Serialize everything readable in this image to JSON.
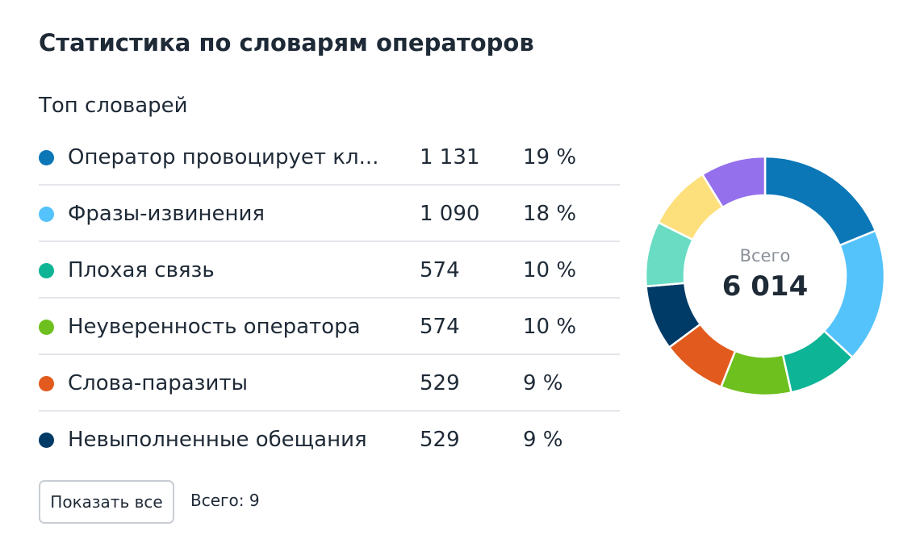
{
  "title": "Статистика по словарям операторов",
  "section_title": "Топ словарей",
  "button_label": "Показать все",
  "total_label": "Всего: 9",
  "chart_data": {
    "type": "pie",
    "variant": "donut",
    "center_label": "Всего",
    "center_value": "6 014",
    "total": 6014,
    "legend": "left",
    "slices": [
      {
        "name": "Оператор провоцирует кл...",
        "value": 1131,
        "value_text": "1 131",
        "percent_text": "19 %",
        "color": "#0b77b7"
      },
      {
        "name": "Фразы-извинения",
        "value": 1090,
        "value_text": "1 090",
        "percent_text": "18 %",
        "color": "#54c3fb"
      },
      {
        "name": "Плохая связь",
        "value": 574,
        "value_text": "574",
        "percent_text": "10 %",
        "color": "#0db495"
      },
      {
        "name": "Неуверенность оператора",
        "value": 574,
        "value_text": "574",
        "percent_text": "10 %",
        "color": "#6ec01e"
      },
      {
        "name": "Слова-паразиты",
        "value": 529,
        "value_text": "529",
        "percent_text": "9 %",
        "color": "#e25a1d"
      },
      {
        "name": "Невыполненные обещания",
        "value": 529,
        "value_text": "529",
        "percent_text": "9 %",
        "color": "#003a66"
      }
    ],
    "other_slices": [
      {
        "value": 529,
        "color": "#6adcc4"
      },
      {
        "value": 529,
        "color": "#fde07c"
      },
      {
        "value": 529,
        "color": "#9570ec"
      }
    ]
  }
}
